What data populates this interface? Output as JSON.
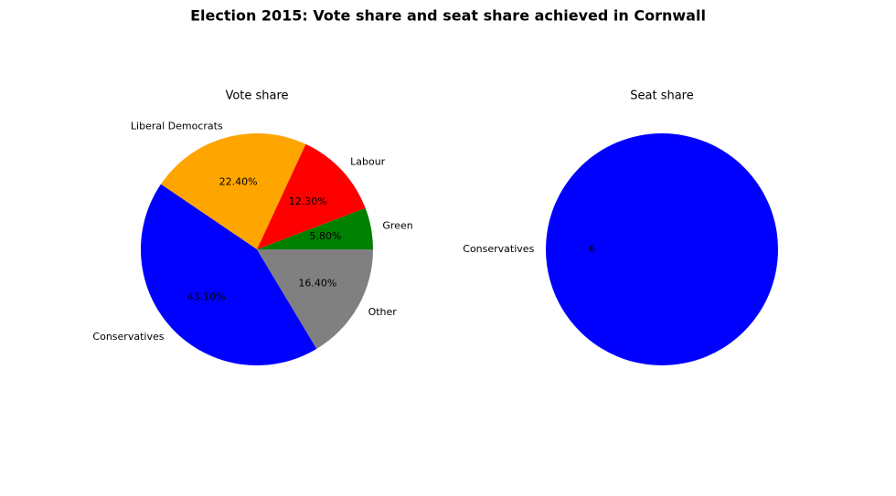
{
  "title": "Election 2015: Vote share and seat share achieved in Cornwall",
  "chart_data": [
    {
      "type": "pie",
      "title": "Vote share",
      "categories": [
        "Green",
        "Labour",
        "Liberal Democrats",
        "Conservatives",
        "Other"
      ],
      "values": [
        5.8,
        12.3,
        22.4,
        43.1,
        16.4
      ],
      "value_labels": [
        "5.80%",
        "12.30%",
        "22.40%",
        "43.10%",
        "16.40%"
      ],
      "colors": [
        "#008000",
        "#ff0000",
        "#ffa500",
        "#0000ff",
        "#808080"
      ]
    },
    {
      "type": "pie",
      "title": "Seat share",
      "categories": [
        "Conservatives"
      ],
      "values": [
        6
      ],
      "colors": [
        "#0000ff"
      ]
    }
  ]
}
